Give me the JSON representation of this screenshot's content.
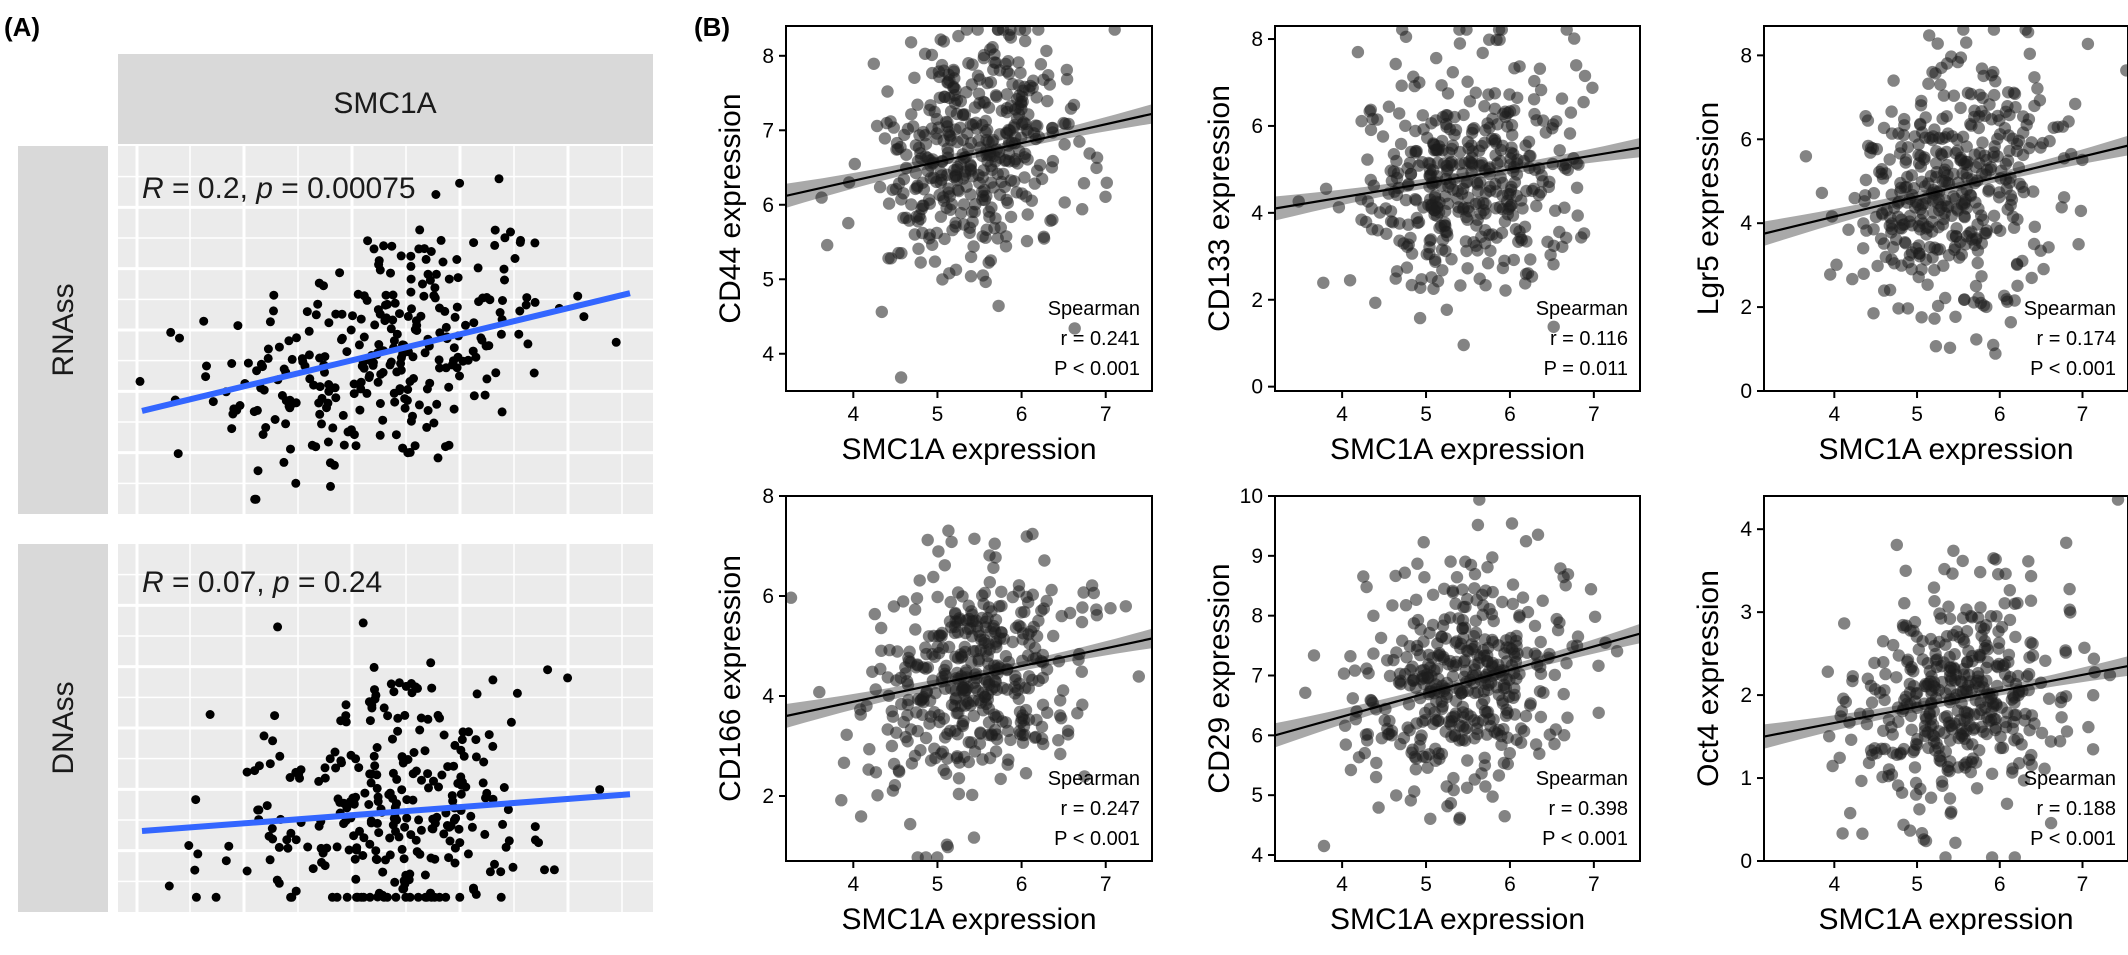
{
  "panel_labels": {
    "a": "(A)",
    "b": "(B)"
  },
  "panel_a": {
    "strip_top": "SMC1A",
    "rows": [
      {
        "strip": "RNAss",
        "stat_r": "R",
        "stat_mid": " = 0.2, ",
        "stat_p": "p",
        "stat_end": " = 0.00075"
      },
      {
        "strip": "DNAss",
        "stat_r": "R",
        "stat_mid": " = 0.07, ",
        "stat_p": "p",
        "stat_end": " = 0.24"
      }
    ]
  },
  "panel_b": {
    "spearman_label": "Spearman",
    "plots": [
      {
        "ylabel": "CD44 expression",
        "xlabel": "SMC1A expression",
        "r_text": "r = 0.241",
        "p_text": "P < 0.001",
        "xticks": [
          "4",
          "5",
          "6",
          "7"
        ],
        "yticks": [
          "4",
          "5",
          "6",
          "7",
          "8"
        ]
      },
      {
        "ylabel": "CD133 expression",
        "xlabel": "SMC1A expression",
        "r_text": "r = 0.116",
        "p_text": "P = 0.011",
        "xticks": [
          "4",
          "5",
          "6",
          "7"
        ],
        "yticks": [
          "0",
          "2",
          "4",
          "6",
          "8"
        ]
      },
      {
        "ylabel": "Lgr5 expression",
        "xlabel": "SMC1A expression",
        "r_text": "r = 0.174",
        "p_text": "P < 0.001",
        "xticks": [
          "4",
          "5",
          "6",
          "7"
        ],
        "yticks": [
          "0",
          "2",
          "4",
          "6",
          "8"
        ]
      },
      {
        "ylabel": "CD166 expression",
        "xlabel": "SMC1A expression",
        "r_text": "r = 0.247",
        "p_text": "P < 0.001",
        "xticks": [
          "4",
          "5",
          "6",
          "7"
        ],
        "yticks": [
          "2",
          "4",
          "6",
          "8"
        ]
      },
      {
        "ylabel": "CD29 expression",
        "xlabel": "SMC1A expression",
        "r_text": "r = 0.398",
        "p_text": "P < 0.001",
        "xticks": [
          "4",
          "5",
          "6",
          "7"
        ],
        "yticks": [
          "4",
          "5",
          "6",
          "7",
          "8",
          "9",
          "10"
        ]
      },
      {
        "ylabel": "Oct4 expression",
        "xlabel": "SMC1A expression",
        "r_text": "r = 0.188",
        "p_text": "P < 0.001",
        "xticks": [
          "4",
          "5",
          "6",
          "7"
        ],
        "yticks": [
          "0",
          "1",
          "2",
          "3",
          "4"
        ]
      }
    ]
  },
  "chart_data": [
    {
      "type": "scatter",
      "series_label": "RNAss",
      "facet": "SMC1A",
      "r": 0.2,
      "p": 0.00075,
      "regression": {
        "y_at_left": 0.28,
        "y_at_right": 0.6
      },
      "n_points": 300
    },
    {
      "type": "scatter",
      "series_label": "DNAss",
      "facet": "SMC1A",
      "r": 0.07,
      "p": 0.24,
      "regression": {
        "y_at_left": 0.22,
        "y_at_right": 0.32
      },
      "n_points": 300
    },
    {
      "type": "scatter",
      "xlabel": "SMC1A expression",
      "ylabel": "CD44 expression",
      "xlim": [
        3.2,
        7.55
      ],
      "ylim": [
        3.5,
        8.4
      ],
      "spearman_r": 0.241,
      "p": "< 0.001",
      "fit": {
        "x": [
          3.2,
          7.55
        ],
        "y": [
          6.12,
          7.22
        ]
      },
      "n_points": 420
    },
    {
      "type": "scatter",
      "xlabel": "SMC1A expression",
      "ylabel": "CD133 expression",
      "xlim": [
        3.2,
        7.55
      ],
      "ylim": [
        -0.1,
        8.3
      ],
      "spearman_r": 0.116,
      "p": "= 0.011",
      "fit": {
        "x": [
          3.2,
          7.55
        ],
        "y": [
          4.1,
          5.5
        ]
      },
      "n_points": 420
    },
    {
      "type": "scatter",
      "xlabel": "SMC1A expression",
      "ylabel": "Lgr5 expression",
      "xlim": [
        3.15,
        7.55
      ],
      "ylim": [
        0,
        8.7
      ],
      "spearman_r": 0.174,
      "p": "< 0.001",
      "fit": {
        "x": [
          3.15,
          7.55
        ],
        "y": [
          3.75,
          5.85
        ]
      },
      "n_points": 420
    },
    {
      "type": "scatter",
      "xlabel": "SMC1A expression",
      "ylabel": "CD166 expression",
      "xlim": [
        3.2,
        7.55
      ],
      "ylim": [
        0.7,
        8.0
      ],
      "spearman_r": 0.247,
      "p": "< 0.001",
      "fit": {
        "x": [
          3.2,
          7.55
        ],
        "y": [
          3.6,
          5.15
        ]
      },
      "n_points": 420
    },
    {
      "type": "scatter",
      "xlabel": "SMC1A expression",
      "ylabel": "CD29 expression",
      "xlim": [
        3.2,
        7.55
      ],
      "ylim": [
        3.9,
        10.0
      ],
      "spearman_r": 0.398,
      "p": "< 0.001",
      "fit": {
        "x": [
          3.2,
          7.55
        ],
        "y": [
          6.0,
          7.7
        ]
      },
      "n_points": 420
    },
    {
      "type": "scatter",
      "xlabel": "SMC1A expression",
      "ylabel": "Oct4 expression",
      "xlim": [
        3.15,
        7.55
      ],
      "ylim": [
        0,
        4.4
      ],
      "spearman_r": 0.188,
      "p": "< 0.001",
      "fit": {
        "x": [
          3.15,
          7.55
        ],
        "y": [
          1.5,
          2.35
        ]
      },
      "n_points": 420
    }
  ]
}
